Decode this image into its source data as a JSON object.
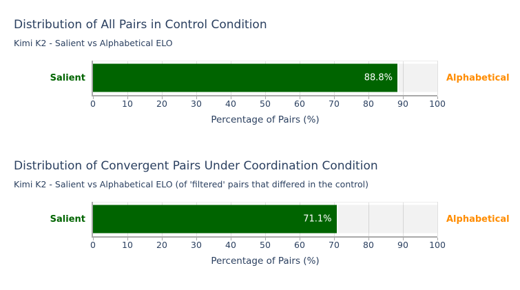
{
  "colors": {
    "title_text": "#2a3f5f",
    "salient_green": "#006400",
    "alphabetical_orange": "#ff8c00",
    "remainder_gray": "#f2f2f2",
    "axis_line": "#a9a9a9",
    "gridline": "#e0e0e0",
    "value_text": "#ffffff"
  },
  "chart_data": [
    {
      "type": "bar",
      "orientation": "horizontal",
      "title": "Distribution of All Pairs in Control Condition",
      "subtitle": "Kimi K2 - Salient vs Alphabetical ELO",
      "xlabel": "Percentage of Pairs (%)",
      "xlim": [
        0,
        100
      ],
      "ticks": [
        0,
        10,
        20,
        30,
        40,
        50,
        60,
        70,
        80,
        90,
        100
      ],
      "grid": true,
      "legend_position": "none",
      "categories": [
        "Salient vs Alphabetical"
      ],
      "series": [
        {
          "name": "Salient",
          "values": [
            88.8
          ],
          "color": "#006400"
        },
        {
          "name": "Alphabetical",
          "values": [
            11.2
          ],
          "color": "#f2f2f2"
        }
      ],
      "value_label": "88.8%"
    },
    {
      "type": "bar",
      "orientation": "horizontal",
      "title": "Distribution of Convergent Pairs Under Coordination Condition",
      "subtitle": "Kimi K2 - Salient vs Alphabetical ELO (of 'filtered' pairs that differed in the control)",
      "xlabel": "Percentage of Pairs (%)",
      "xlim": [
        0,
        100
      ],
      "ticks": [
        0,
        10,
        20,
        30,
        40,
        50,
        60,
        70,
        80,
        90,
        100
      ],
      "grid": true,
      "legend_position": "none",
      "categories": [
        "Salient vs Alphabetical"
      ],
      "series": [
        {
          "name": "Salient",
          "values": [
            71.1
          ],
          "color": "#006400"
        },
        {
          "name": "Alphabetical",
          "values": [
            28.9
          ],
          "color": "#f2f2f2"
        }
      ],
      "value_label": "71.1%"
    }
  ]
}
